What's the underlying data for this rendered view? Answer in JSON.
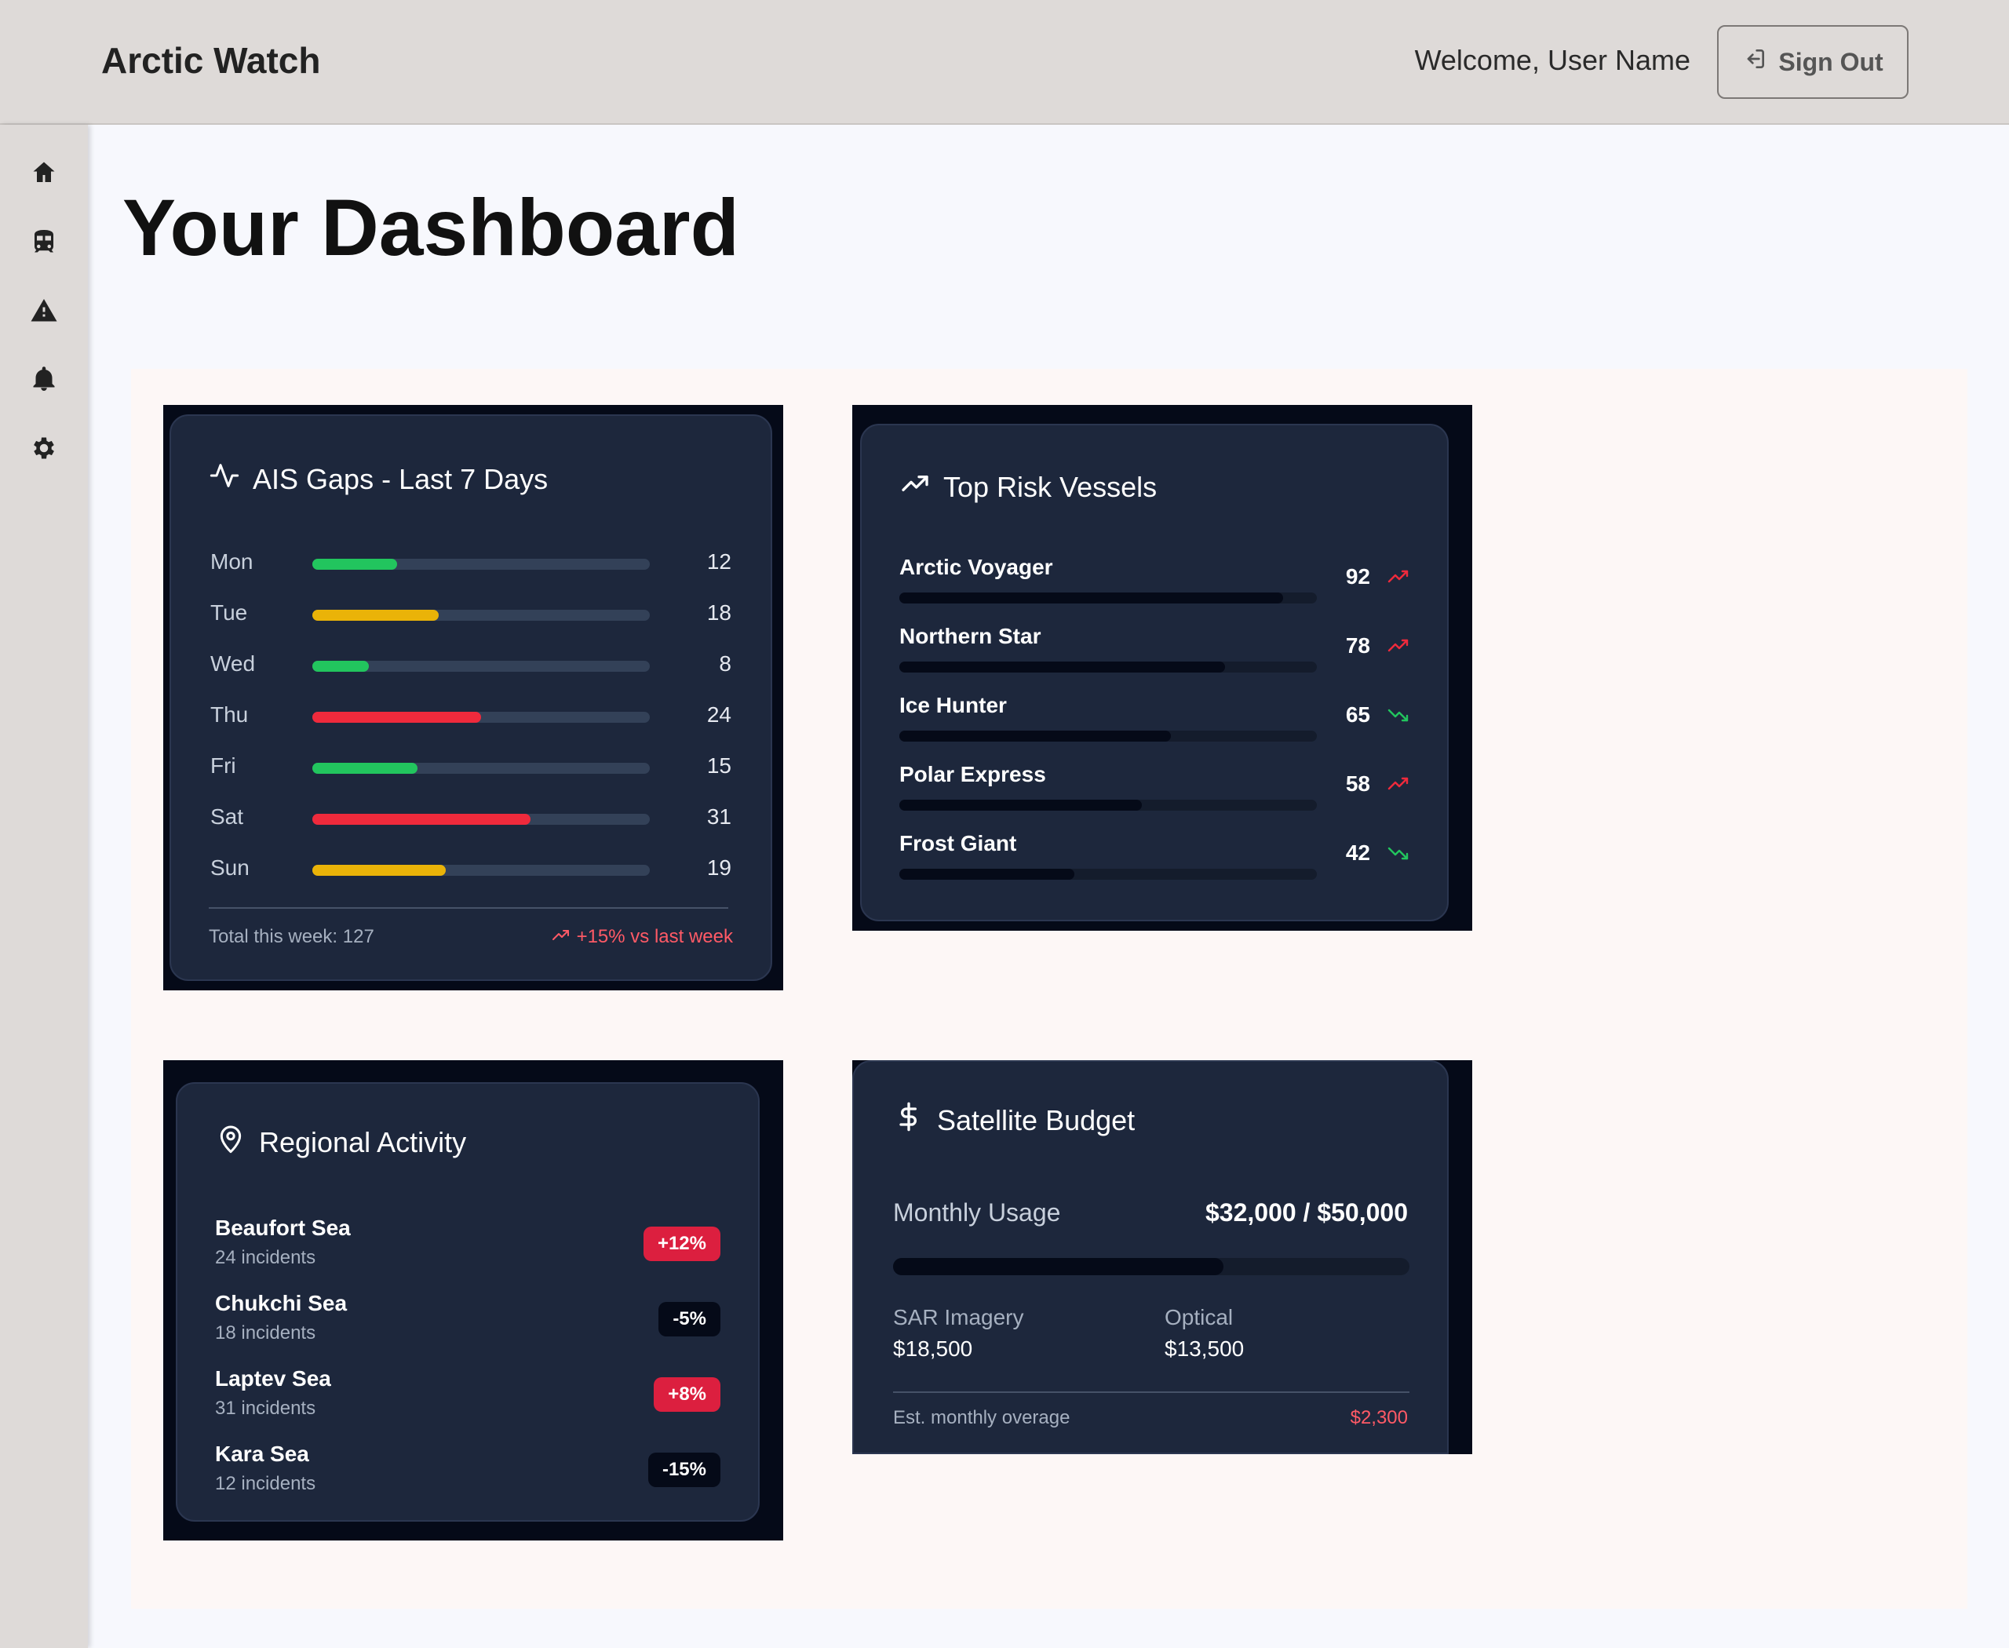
{
  "header": {
    "brand": "Arctic Watch",
    "welcome": "Welcome, User Name",
    "sign_out": "Sign Out"
  },
  "sidebar": {
    "items": [
      {
        "icon": "home-icon"
      },
      {
        "icon": "vessel-icon"
      },
      {
        "icon": "alert-icon"
      },
      {
        "icon": "bell-icon"
      },
      {
        "icon": "gear-icon"
      }
    ]
  },
  "page": {
    "title": "Your Dashboard"
  },
  "ais_gaps": {
    "title": "AIS Gaps - Last 7 Days",
    "max": 48,
    "days": [
      {
        "label": "Mon",
        "value": 12,
        "color": "#22c55e"
      },
      {
        "label": "Tue",
        "value": 18,
        "color": "#eab308"
      },
      {
        "label": "Wed",
        "value": 8,
        "color": "#22c55e"
      },
      {
        "label": "Thu",
        "value": 24,
        "color": "#ef2a3c"
      },
      {
        "label": "Fri",
        "value": 15,
        "color": "#22c55e"
      },
      {
        "label": "Sat",
        "value": 31,
        "color": "#ef2a3c"
      },
      {
        "label": "Sun",
        "value": 19,
        "color": "#eab308"
      }
    ],
    "total": "Total this week: 127",
    "change": "+15% vs last week"
  },
  "risk_vessels": {
    "title": "Top Risk Vessels",
    "items": [
      {
        "name": "Arctic Voyager",
        "score": "92",
        "fraction": 0.92,
        "trend": "up"
      },
      {
        "name": "Northern Star",
        "score": "78",
        "fraction": 0.78,
        "trend": "up"
      },
      {
        "name": "Ice Hunter",
        "score": "65",
        "fraction": 0.65,
        "trend": "down"
      },
      {
        "name": "Polar Express",
        "score": "58",
        "fraction": 0.58,
        "trend": "up"
      },
      {
        "name": "Frost Giant",
        "score": "42",
        "fraction": 0.42,
        "trend": "down"
      }
    ]
  },
  "regional": {
    "title": "Regional Activity",
    "items": [
      {
        "name": "Beaufort Sea",
        "sub": "24 incidents",
        "badge": "+12%",
        "badge_color": "#dc1f3f"
      },
      {
        "name": "Chukchi Sea",
        "sub": "18 incidents",
        "badge": "-5%",
        "badge_color": "#050a18"
      },
      {
        "name": "Laptev Sea",
        "sub": "31 incidents",
        "badge": "+8%",
        "badge_color": "#dc1f3f"
      },
      {
        "name": "Kara Sea",
        "sub": "12 incidents",
        "badge": "-15%",
        "badge_color": "#050a18"
      }
    ]
  },
  "budget": {
    "title": "Satellite Budget",
    "monthly_label": "Monthly Usage",
    "monthly_value": "$32,000 / $50,000",
    "usage_fraction": 0.64,
    "sar_label": "SAR Imagery",
    "sar_value": "$18,500",
    "optical_label": "Optical",
    "optical_value": "$13,500",
    "overage_label": "Est. monthly overage",
    "overage_value": "$2,300"
  },
  "colors": {
    "up": "#ef2a3c",
    "down": "#22c55e"
  }
}
